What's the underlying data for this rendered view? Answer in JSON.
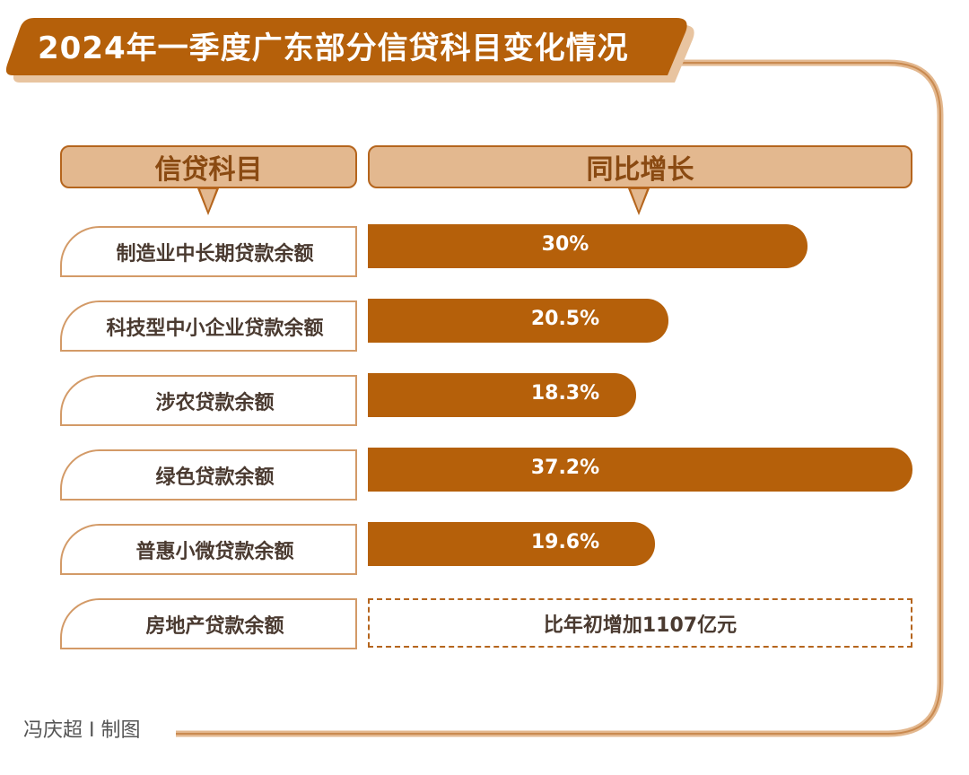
{
  "title": "2024年一季度广东部分信贷科目变化情况",
  "headers": {
    "category": "信贷科目",
    "value": "同比增长"
  },
  "chart_data": {
    "type": "bar",
    "orientation": "horizontal",
    "categories": [
      "制造业中长期贷款余额",
      "科技型中小企业贷款余额",
      "涉农贷款余额",
      "绿色贷款余额",
      "普惠小微贷款余额"
    ],
    "values": [
      30,
      20.5,
      18.3,
      37.2,
      19.6
    ],
    "value_labels": [
      "30%",
      "20.5%",
      "18.3%",
      "37.2%",
      "19.6%"
    ],
    "xlim": [
      0,
      37.2
    ]
  },
  "extra_row": {
    "label": "房地产贷款余额",
    "note": "比年初增加1107亿元"
  },
  "credit": "冯庆超 I 制图",
  "colors": {
    "bar": "#b5600a",
    "header_fill": "#e3b88f",
    "border": "#b5651d",
    "label_border": "#d39a67"
  }
}
